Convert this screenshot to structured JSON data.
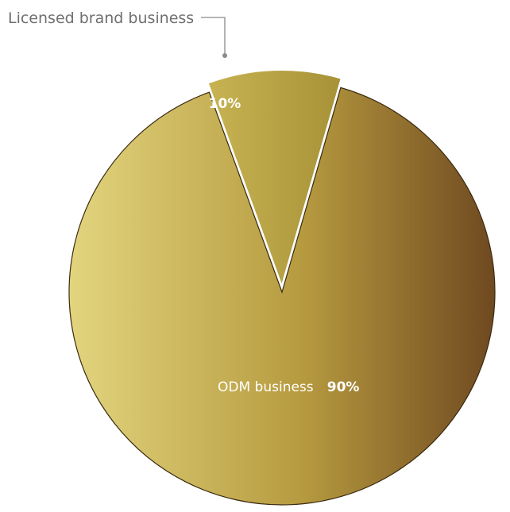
{
  "chart_data": {
    "type": "pie",
    "slices": [
      {
        "label": "Licensed brand business",
        "percent_label": "10%",
        "value": 10,
        "exploded": true,
        "label_style": "callout"
      },
      {
        "label": "ODM business",
        "percent_label": "90%",
        "value": 90,
        "exploded": false,
        "label_style": "inside"
      }
    ],
    "title": "",
    "legend": "none",
    "colors": {
      "gradient_light": "#e2d57e",
      "gradient_mid": "#b69a3f",
      "gradient_dark": "#6f4920",
      "label_text": "#ffffff",
      "callout_text": "#6f6f6f",
      "callout_line": "#8a8a8a"
    }
  }
}
